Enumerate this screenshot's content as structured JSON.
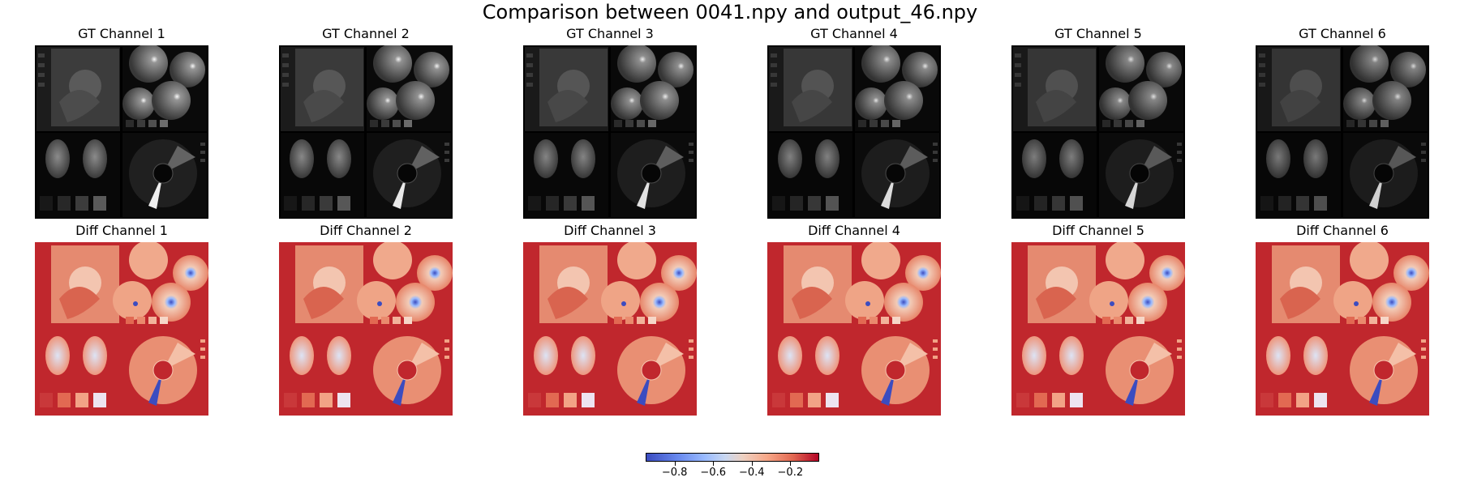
{
  "figure": {
    "title": "Comparison between 0041.npy and output_46.npy"
  },
  "rows": [
    {
      "kind": "gt",
      "colormap": "gray",
      "panels": [
        {
          "title": "GT Channel 1"
        },
        {
          "title": "GT Channel 2"
        },
        {
          "title": "GT Channel 3"
        },
        {
          "title": "GT Channel 4"
        },
        {
          "title": "GT Channel 5"
        },
        {
          "title": "GT Channel 6"
        }
      ]
    },
    {
      "kind": "diff",
      "colormap": "coolwarm",
      "panels": [
        {
          "title": "Diff Channel 1"
        },
        {
          "title": "Diff Channel 2"
        },
        {
          "title": "Diff Channel 3"
        },
        {
          "title": "Diff Channel 4"
        },
        {
          "title": "Diff Channel 5"
        },
        {
          "title": "Diff Channel 6"
        }
      ]
    }
  ],
  "colorbar": {
    "colormap": "coolwarm",
    "range": [
      -0.95,
      -0.05
    ],
    "ticks": [
      {
        "value": -0.8,
        "label": "−0.8"
      },
      {
        "value": -0.6,
        "label": "−0.6"
      },
      {
        "value": -0.4,
        "label": "−0.4"
      },
      {
        "value": -0.2,
        "label": "−0.2"
      }
    ]
  },
  "colors": {
    "coolwarm_low": "#3b4cc0",
    "coolwarm_high": "#b40426",
    "gt_background": "#000000"
  }
}
